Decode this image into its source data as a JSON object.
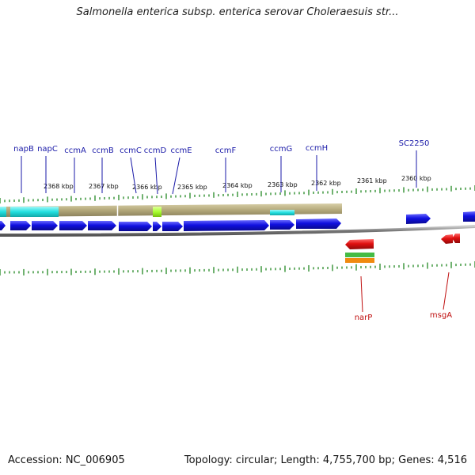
{
  "title": "Salmonella enterica subsp. enterica serovar Choleraesuis str...",
  "footer": {
    "accession": "Accession: NC_006905",
    "summary": "Topology: circular; Length: 4,755,700 bp; Genes: 4,516"
  },
  "ticks": [
    {
      "label": "2368 kbp"
    },
    {
      "label": "2367 kbp"
    },
    {
      "label": "2366 kbp"
    },
    {
      "label": "2365 kbp"
    },
    {
      "label": "2364 kbp"
    },
    {
      "label": "2363 kbp"
    },
    {
      "label": "2362 kbp"
    },
    {
      "label": "2361 kbp"
    },
    {
      "label": "2360 kbp"
    }
  ],
  "top_genes": [
    {
      "name": "napB"
    },
    {
      "name": "napC"
    },
    {
      "name": "ccmA"
    },
    {
      "name": "ccmB"
    },
    {
      "name": "ccmC"
    },
    {
      "name": "ccmD"
    },
    {
      "name": "ccmE"
    },
    {
      "name": "ccmF"
    },
    {
      "name": "ccmG"
    },
    {
      "name": "ccmH"
    },
    {
      "name": "SC2250"
    }
  ],
  "bottom_genes": [
    {
      "name": "narP"
    },
    {
      "name": "msgA"
    }
  ],
  "colors": {
    "forward_gene": "#1010e0",
    "reverse_gene": "#e01010",
    "cog_olive": "#b3a87a",
    "cog_cyan": "#22e0e0",
    "cog_lime": "#a8ff30",
    "tick": "#228822",
    "backbone": "#777777",
    "top_label": "#1a1aa8",
    "bottom_label": "#c01010"
  }
}
